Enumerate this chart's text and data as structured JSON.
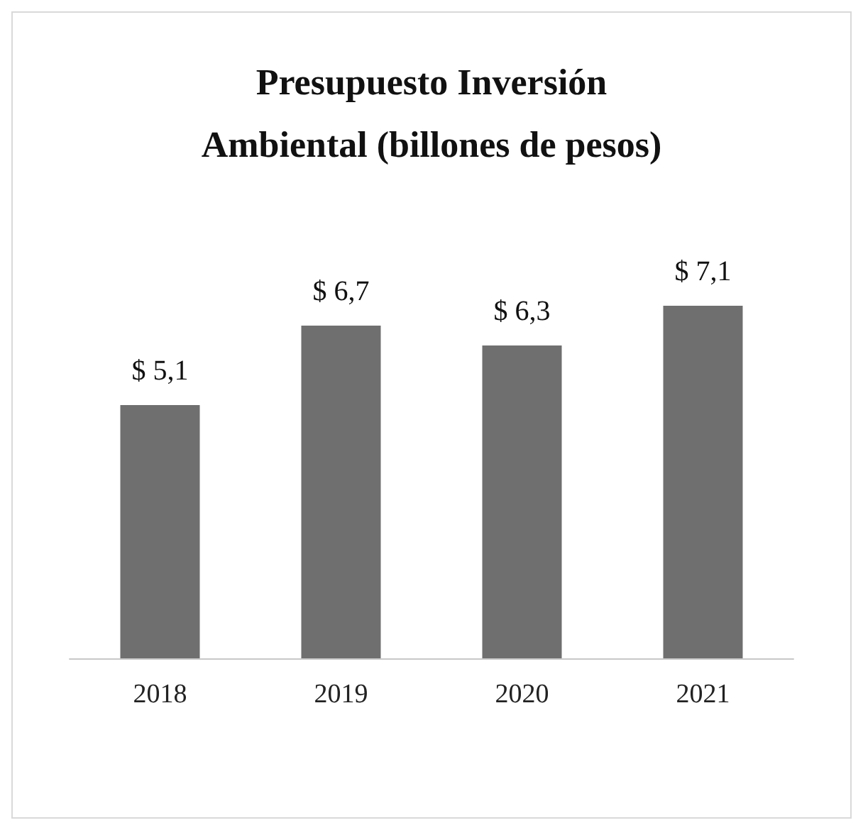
{
  "chart_data": {
    "type": "bar",
    "title": "Presupuesto Inversión\nAmbiental (billones de pesos)",
    "categories": [
      "2018",
      "2019",
      "2020",
      "2021"
    ],
    "values": [
      5.1,
      6.7,
      6.3,
      7.1
    ],
    "value_labels": [
      "$ 5,1",
      "$ 6,7",
      "$ 6,3",
      "$ 7,1"
    ],
    "color": "#6f6f6f"
  }
}
